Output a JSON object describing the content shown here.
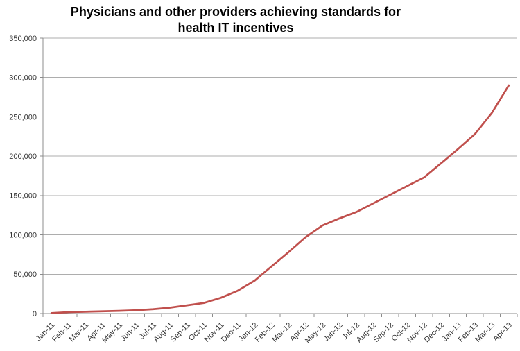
{
  "title_line1": "Physicians and other providers achieving standards for",
  "title_line2": "health IT incentives",
  "chart_data": {
    "type": "line",
    "title": "Physicians and other providers achieving standards for health IT incentives",
    "xlabel": "",
    "ylabel": "",
    "legend": false,
    "grid": true,
    "ylim": [
      0,
      350000
    ],
    "ytick_interval": 50000,
    "ytick_labels": [
      "0",
      "50,000",
      "100,000",
      "150,000",
      "200,000",
      "250,000",
      "300,000",
      "350,000"
    ],
    "categories": [
      "Jan-11",
      "Feb-11",
      "Mar-11",
      "Apr-11",
      "May-11",
      "Jun-11",
      "Jul-11",
      "Aug-11",
      "Sep-11",
      "Oct-11",
      "Nov-11",
      "Dec-11",
      "Jan-12",
      "Feb-12",
      "Mar-12",
      "Apr-12",
      "May-12",
      "Jun-12",
      "Jul-12",
      "Aug-12",
      "Sep-12",
      "Oct-12",
      "Nov-12",
      "Dec-12",
      "Jan-13",
      "Feb-13",
      "Mar-13",
      "Apr-13"
    ],
    "values": [
      500,
      1800,
      2300,
      2800,
      3400,
      4200,
      5500,
      7500,
      10500,
      13500,
      20000,
      29000,
      42000,
      60000,
      78000,
      97000,
      112000,
      121000,
      129000,
      140000,
      151000,
      162000,
      173000,
      191000,
      209000,
      228000,
      255000,
      290000
    ],
    "colors": {
      "line": "#C0504D",
      "gridline": "#ADADAD",
      "axis": "#8C8C8C",
      "tick_label": "#333333",
      "title": "#000000",
      "background": "#FFFFFF"
    }
  }
}
